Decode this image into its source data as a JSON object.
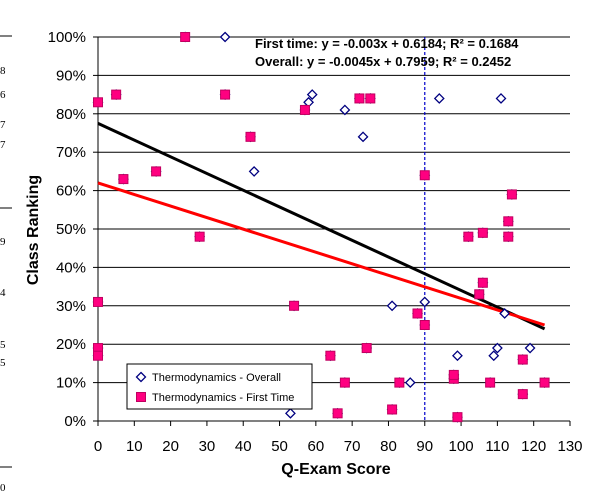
{
  "chart_data": {
    "type": "scatter",
    "title": "",
    "xlabel": "Q-Exam Score",
    "ylabel": "Class Ranking",
    "xlim": [
      0,
      130
    ],
    "ylim": [
      0,
      100
    ],
    "x_ticks": [
      "0",
      "10",
      "20",
      "30",
      "40",
      "50",
      "60",
      "70",
      "80",
      "90",
      "100",
      "110",
      "120",
      "130"
    ],
    "y_ticks": [
      "0%",
      "10%",
      "20%",
      "30%",
      "40%",
      "50%",
      "60%",
      "70%",
      "80%",
      "90%",
      "100%"
    ],
    "grid": "horizontal",
    "reference_line_x": 90,
    "legend_position": "bottom-left",
    "annotations": [
      "First time: y = -0.003x + 0.6184; R² = 0.1684",
      "Overall: y = -0.0045x + 0.7959; R² = 0.2452"
    ],
    "series": [
      {
        "name": "Thermodynamics - Overall",
        "marker": "diamond-open",
        "color": "#000080",
        "points": [
          [
            0,
            83
          ],
          [
            0,
            31
          ],
          [
            0,
            19
          ],
          [
            0,
            17
          ],
          [
            5,
            85
          ],
          [
            7,
            63
          ],
          [
            16,
            65
          ],
          [
            24,
            100
          ],
          [
            28,
            48
          ],
          [
            35,
            100
          ],
          [
            35,
            85
          ],
          [
            42,
            74
          ],
          [
            43,
            65
          ],
          [
            53,
            2
          ],
          [
            54,
            30
          ],
          [
            57,
            81
          ],
          [
            58,
            83
          ],
          [
            59,
            85
          ],
          [
            64,
            17
          ],
          [
            66,
            2
          ],
          [
            68,
            81
          ],
          [
            68,
            10
          ],
          [
            72,
            84
          ],
          [
            73,
            74
          ],
          [
            74,
            19
          ],
          [
            75,
            84
          ],
          [
            81,
            3
          ],
          [
            81,
            30
          ],
          [
            83,
            10
          ],
          [
            86,
            10
          ],
          [
            88,
            28
          ],
          [
            90,
            64
          ],
          [
            90,
            31
          ],
          [
            90,
            25
          ],
          [
            94,
            84
          ],
          [
            98,
            11
          ],
          [
            98,
            12
          ],
          [
            99,
            17
          ],
          [
            99,
            1
          ],
          [
            102,
            48
          ],
          [
            105,
            33
          ],
          [
            106,
            49
          ],
          [
            106,
            36
          ],
          [
            108,
            10
          ],
          [
            109,
            17
          ],
          [
            110,
            19
          ],
          [
            111,
            84
          ],
          [
            112,
            28
          ],
          [
            113,
            48
          ],
          [
            113,
            52
          ],
          [
            114,
            59
          ],
          [
            117,
            7
          ],
          [
            117,
            16
          ],
          [
            119,
            19
          ],
          [
            123,
            10
          ]
        ]
      },
      {
        "name": "Thermodynamics - First Time",
        "marker": "square",
        "color": "#ff0080",
        "points": [
          [
            0,
            83
          ],
          [
            0,
            31
          ],
          [
            0,
            19
          ],
          [
            0,
            17
          ],
          [
            5,
            85
          ],
          [
            7,
            63
          ],
          [
            16,
            65
          ],
          [
            24,
            100
          ],
          [
            28,
            48
          ],
          [
            35,
            85
          ],
          [
            42,
            74
          ],
          [
            54,
            30
          ],
          [
            57,
            81
          ],
          [
            64,
            17
          ],
          [
            66,
            2
          ],
          [
            68,
            10
          ],
          [
            72,
            84
          ],
          [
            74,
            19
          ],
          [
            75,
            84
          ],
          [
            81,
            3
          ],
          [
            83,
            10
          ],
          [
            88,
            28
          ],
          [
            90,
            64
          ],
          [
            90,
            25
          ],
          [
            98,
            11
          ],
          [
            98,
            12
          ],
          [
            99,
            1
          ],
          [
            102,
            48
          ],
          [
            105,
            33
          ],
          [
            106,
            49
          ],
          [
            106,
            36
          ],
          [
            108,
            10
          ],
          [
            113,
            48
          ],
          [
            113,
            52
          ],
          [
            114,
            59
          ],
          [
            117,
            7
          ],
          [
            117,
            16
          ],
          [
            123,
            10
          ]
        ]
      }
    ],
    "trendlines": [
      {
        "series": "Thermodynamics - Overall",
        "color": "#000000",
        "x": [
          0,
          123
        ],
        "y": [
          77.5,
          24
        ]
      },
      {
        "series": "Thermodynamics - First Time",
        "color": "#ff0000",
        "x": [
          0,
          123
        ],
        "y": [
          62,
          25
        ]
      }
    ]
  },
  "edge_fragments": [
    "8",
    "6",
    "7",
    "7",
    "9",
    "4",
    "5",
    "5",
    "0"
  ],
  "colors": {
    "overall_marker": "#000080",
    "first_time_fill": "#ff0080",
    "first_time_border": "#c00060",
    "trend_overall": "#000000",
    "trend_first_time": "#ff0000",
    "reference_line": "#0000cc",
    "grid": "#000000"
  }
}
